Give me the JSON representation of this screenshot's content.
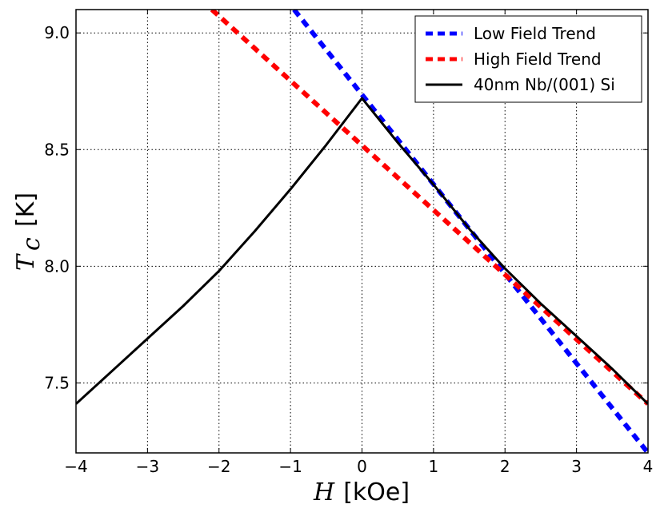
{
  "chart_data": {
    "type": "line",
    "title": "",
    "xlabel": {
      "symbol": "H",
      "unit": "[kOe]"
    },
    "ylabel": {
      "symbol": "T",
      "subscript": "c",
      "unit": "[K]"
    },
    "xlim": [
      -4,
      4
    ],
    "ylim": [
      7.2,
      9.1
    ],
    "grid": true,
    "legend_position": "top-right",
    "x_ticks": [
      -4,
      -3,
      -2,
      -1,
      0,
      1,
      2,
      3,
      4
    ],
    "x_tick_labels": [
      "−4",
      "−3",
      "−2",
      "−1",
      "0",
      "1",
      "2",
      "3",
      "4"
    ],
    "y_ticks": [
      7.5,
      8.0,
      8.5,
      9.0
    ],
    "y_tick_labels": [
      "7.5",
      "8.0",
      "8.5",
      "9.0"
    ],
    "series": [
      {
        "name": "Low Field Trend",
        "style": "dashed",
        "color": "#0000ff",
        "x": [
          -0.95,
          4.0
        ],
        "y": [
          9.1,
          7.2
        ]
      },
      {
        "name": "High Field Trend",
        "style": "dashed",
        "color": "#ff0000",
        "x": [
          -2.1,
          4.0
        ],
        "y": [
          9.1,
          7.41
        ]
      },
      {
        "name": "40nm Nb/(001) Si",
        "style": "solid",
        "color": "#000000",
        "x": [
          -4.0,
          -3.5,
          -3.0,
          -2.5,
          -2.0,
          -1.5,
          -1.0,
          -0.5,
          0.0,
          0.5,
          1.0,
          1.5,
          2.0,
          2.5,
          3.0,
          3.5,
          4.0
        ],
        "y": [
          7.41,
          7.55,
          7.69,
          7.83,
          7.98,
          8.15,
          8.33,
          8.52,
          8.72,
          8.53,
          8.35,
          8.16,
          7.99,
          7.84,
          7.7,
          7.56,
          7.41
        ]
      }
    ]
  }
}
